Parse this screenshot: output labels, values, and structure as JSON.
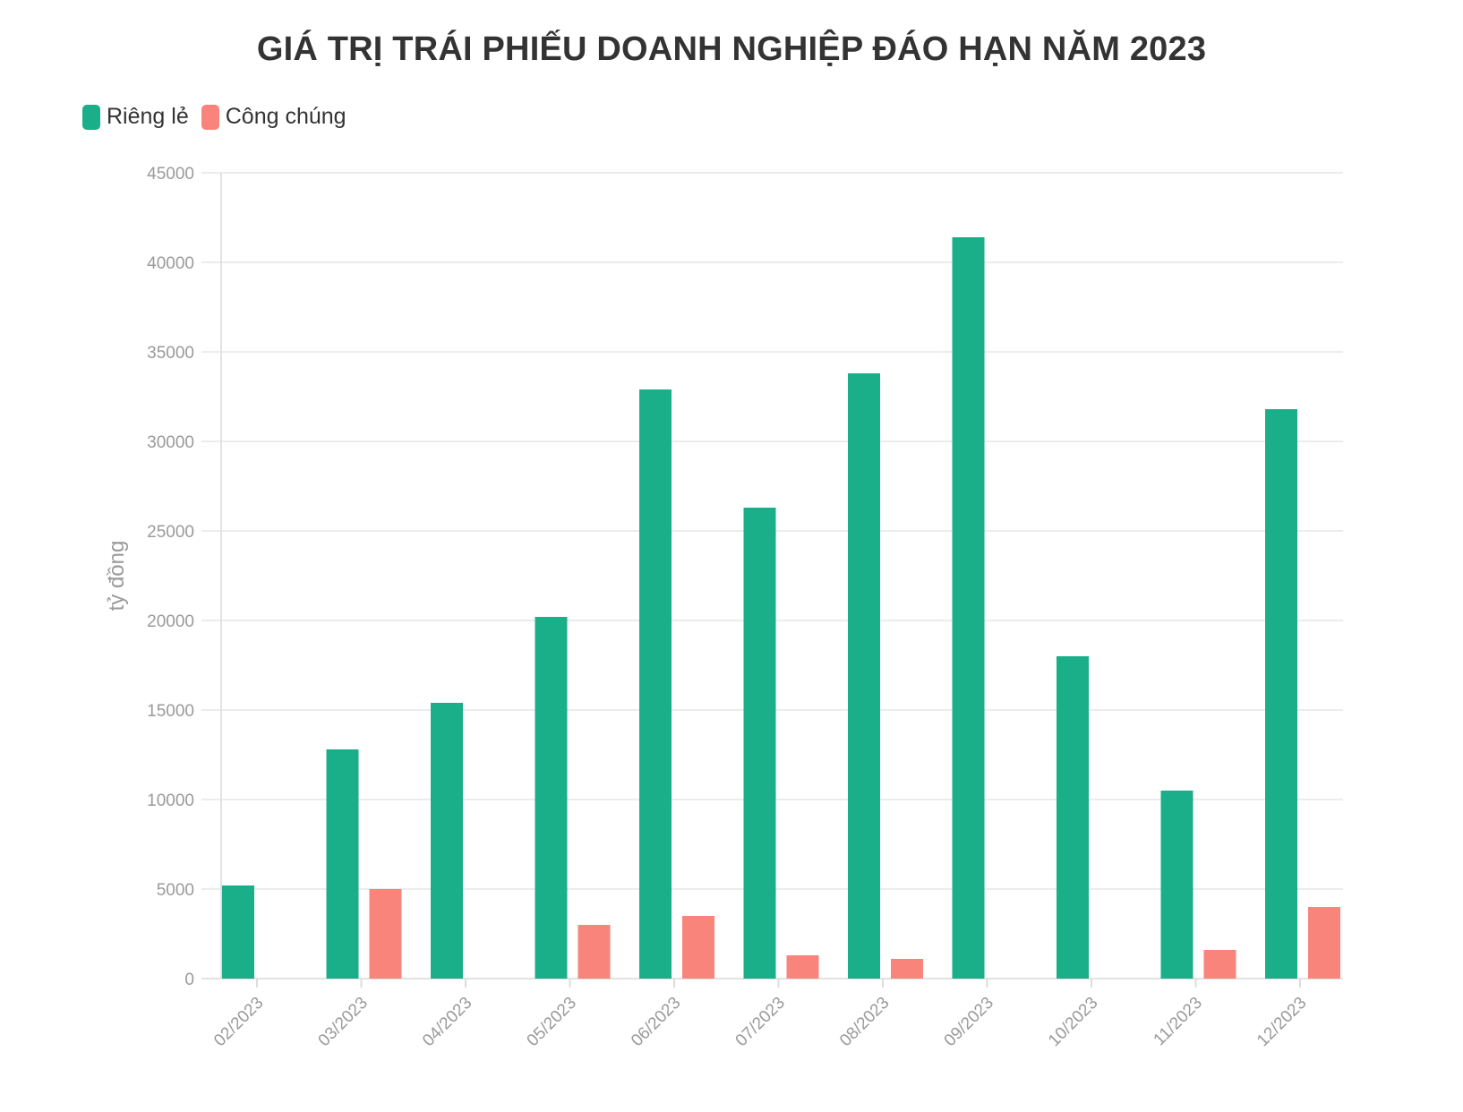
{
  "chart_data": {
    "type": "bar",
    "title": "GIÁ TRỊ TRÁI PHIẾU DOANH NGHIỆP ĐÁO HẠN NĂM 2023",
    "ylabel": "tỷ đồng",
    "xlabel": "",
    "ylim": [
      0,
      45000
    ],
    "yticks": [
      0,
      5000,
      10000,
      15000,
      20000,
      25000,
      30000,
      35000,
      40000,
      45000
    ],
    "categories": [
      "02/2023",
      "03/2023",
      "04/2023",
      "05/2023",
      "06/2023",
      "07/2023",
      "08/2023",
      "09/2023",
      "10/2023",
      "11/2023",
      "12/2023"
    ],
    "series": [
      {
        "name": "Riêng lẻ",
        "color": "#1aaf88",
        "values": [
          5200,
          12800,
          15400,
          20200,
          32900,
          26300,
          33800,
          41400,
          18000,
          10500,
          31800
        ]
      },
      {
        "name": "Công chúng",
        "color": "#f8847b",
        "values": [
          0,
          5000,
          0,
          3000,
          3500,
          1300,
          1100,
          0,
          0,
          1600,
          4000
        ]
      }
    ],
    "legend": "top-left",
    "grid": true
  }
}
